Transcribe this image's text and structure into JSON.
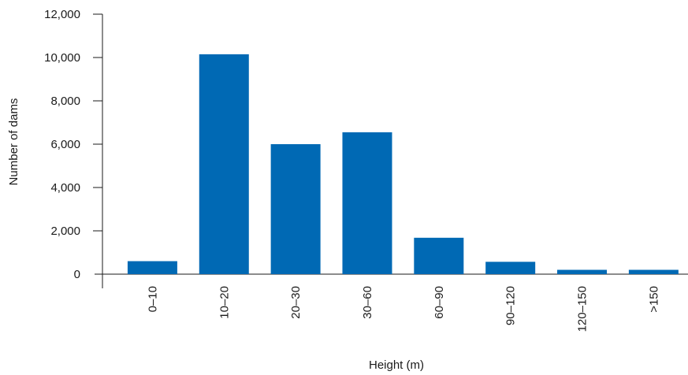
{
  "chart_data": {
    "type": "bar",
    "title": "",
    "xlabel": "Height (m)",
    "ylabel": "Number of dams",
    "categories": [
      "0–10",
      "10–20",
      "20–30",
      "30–60",
      "60–90",
      "90–120",
      "120–150",
      ">150"
    ],
    "values": [
      600,
      10150,
      6000,
      6550,
      1680,
      570,
      200,
      200
    ],
    "ylim": [
      0,
      12000
    ],
    "yticks": [
      {
        "value": 0,
        "label": "0"
      },
      {
        "value": 2000,
        "label": "2,000"
      },
      {
        "value": 4000,
        "label": "4,000"
      },
      {
        "value": 6000,
        "label": "6,000"
      },
      {
        "value": 8000,
        "label": "8,000"
      },
      {
        "value": 10000,
        "label": "10,000"
      },
      {
        "value": 12000,
        "label": "12,000"
      }
    ],
    "grid": false,
    "legend": "none",
    "colors": {
      "bar": "#0069b4",
      "axis": "#1a1a1a"
    }
  }
}
